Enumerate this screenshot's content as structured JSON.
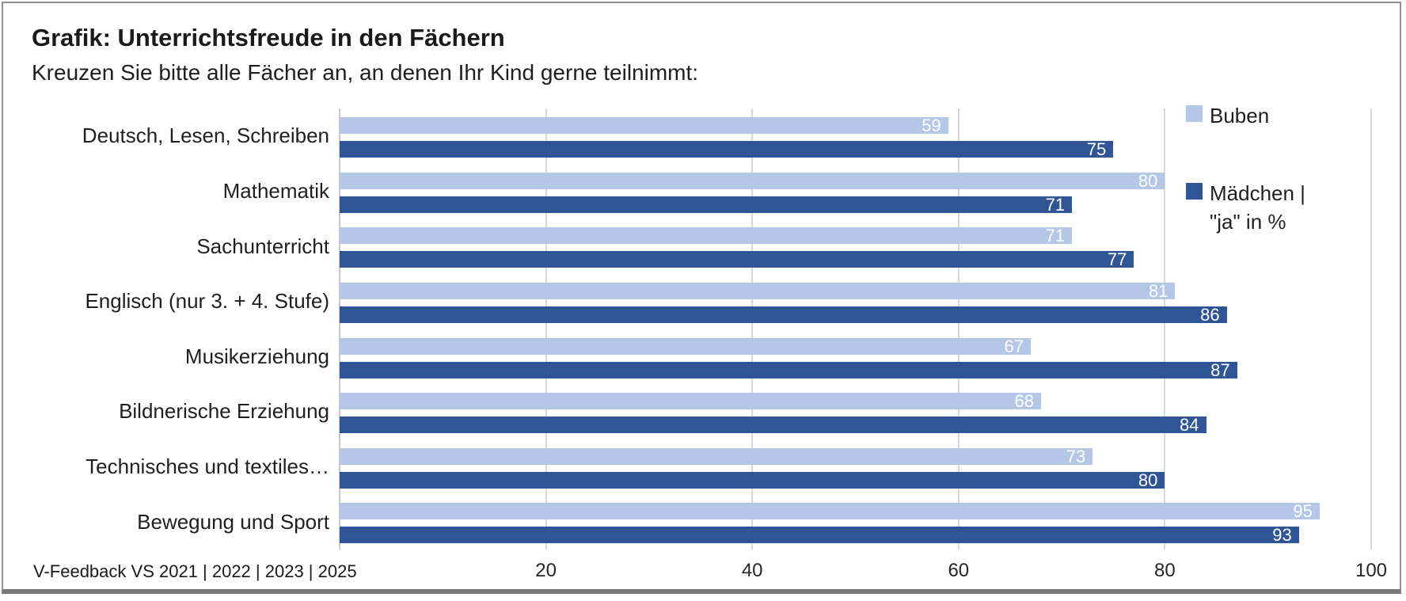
{
  "header": {
    "title": "Grafik: Unterrichtsfreude in den Fächern",
    "subtitle": "Kreuzen Sie bitte alle Fächer an, an denen Ihr Kind gerne teilnimmt:"
  },
  "footer": {
    "source_text": "V-Feedback VS 2021 | 2022 | 2023 | 2025"
  },
  "legend": {
    "items": [
      {
        "name": "buben",
        "lines": [
          "Buben"
        ],
        "color": "#b4c7e7"
      },
      {
        "name": "maedchen",
        "lines": [
          "Mädchen |",
          "\"ja\" in %"
        ],
        "color": "#2f5597"
      }
    ]
  },
  "chart_data": {
    "type": "bar",
    "orientation": "horizontal",
    "title": "Grafik: Unterrichtsfreude in den Fächern",
    "subtitle": "Kreuzen Sie bitte alle Fächer an, an denen Ihr Kind gerne teilnimmt:",
    "unit": "\"ja\" in %",
    "categories": [
      "Deutsch, Lesen, Schreiben",
      "Mathematik",
      "Sachunterricht",
      "Englisch (nur 3. + 4. Stufe)",
      "Musikerziehung",
      "Bildnerische Erziehung",
      "Technisches und textiles…",
      "Bewegung und Sport"
    ],
    "series": [
      {
        "name": "Buben",
        "color": "#b4c7e7",
        "values": [
          59,
          80,
          71,
          81,
          67,
          68,
          73,
          95
        ]
      },
      {
        "name": "Mädchen | \"ja\" in %",
        "color": "#2f5597",
        "values": [
          75,
          71,
          77,
          86,
          87,
          84,
          80,
          93
        ]
      }
    ],
    "xlim": [
      0,
      100
    ],
    "xticks": [
      20,
      40,
      60,
      80,
      100
    ],
    "gridlines": [
      0,
      20,
      40,
      60,
      80,
      100
    ],
    "grid": "vertical",
    "legend_position": "right",
    "value_labels": "inside-end-white"
  },
  "colors": {
    "series_light": "#b4c7e7",
    "series_dark": "#2f5597",
    "gridline": "#d9d9d9",
    "frame_border": "#8f8f8f",
    "text": "#1a1a1a"
  }
}
